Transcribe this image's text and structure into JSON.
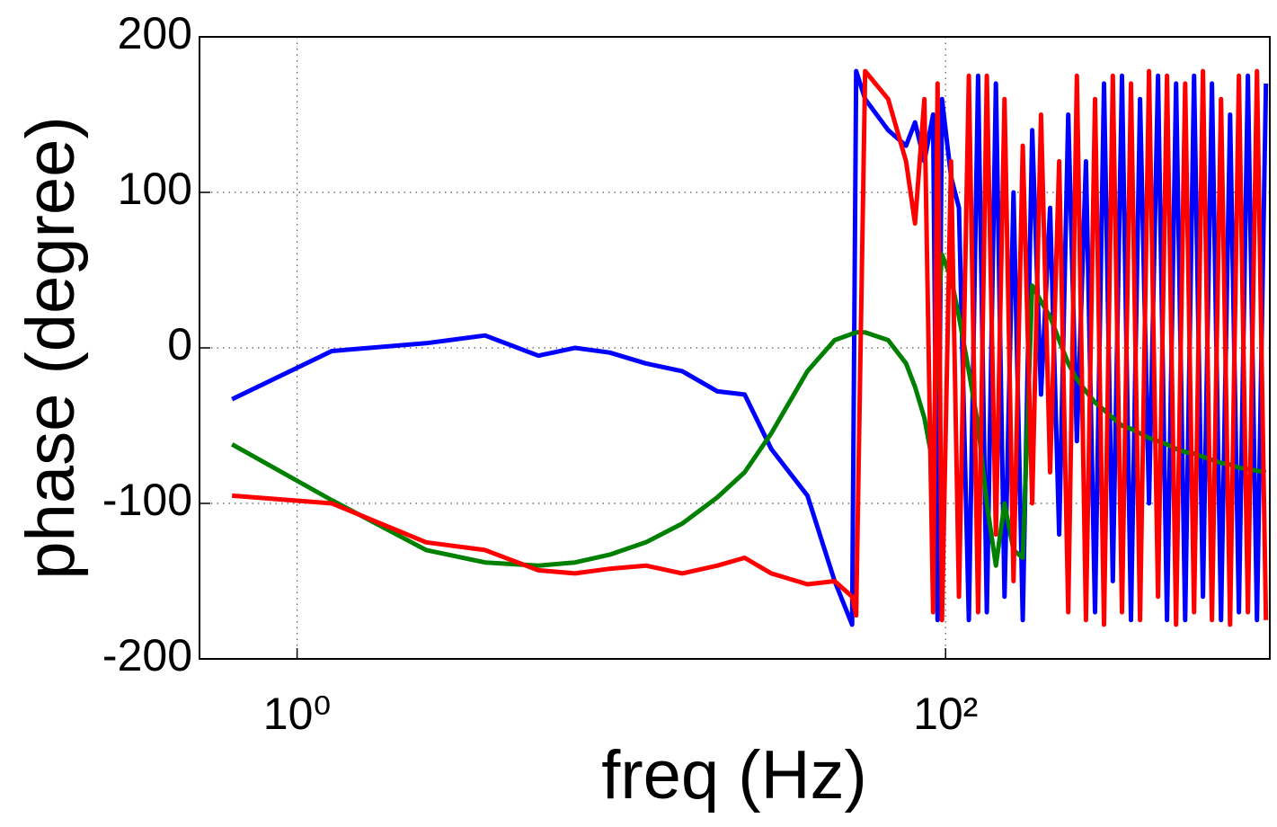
{
  "chart_data": {
    "type": "line",
    "xlabel": "freq (Hz)",
    "ylabel": "phase (degree)",
    "xscale": "log",
    "grid": true,
    "xlim": [
      0.5,
      1000
    ],
    "ylim": [
      -200,
      200
    ],
    "xticks": [
      {
        "value": 1,
        "label": "10⁰"
      },
      {
        "value": 100,
        "label": "10²"
      }
    ],
    "yticks": [
      -200,
      -100,
      0,
      100,
      200
    ],
    "x": [
      0.63,
      1.28,
      2.5,
      3.8,
      5.55,
      7.2,
      9.2,
      11.9,
      15.4,
      19.8,
      24,
      29,
      37.5,
      45.5,
      51.5,
      53,
      56.5,
      66.5,
      75.5,
      80.5,
      86,
      91.5,
      94.5,
      97.5,
      104,
      110,
      118,
      126,
      134,
      143,
      152,
      162,
      173,
      185,
      197,
      210,
      224,
      239,
      254,
      271,
      289,
      308,
      328,
      350,
      373,
      398,
      424,
      452,
      482,
      514,
      548,
      584,
      622,
      663,
      707,
      754,
      803,
      856,
      913,
      973
    ],
    "series": [
      {
        "color": "#0000ff",
        "values": [
          -33,
          -2,
          3,
          8,
          -5,
          0,
          -3,
          -10,
          -15,
          -28,
          -30,
          -65,
          -95,
          -150,
          -178,
          178,
          160,
          140,
          130,
          145,
          120,
          150,
          -175,
          160,
          110,
          90,
          -175,
          175,
          -170,
          170,
          -160,
          100,
          -175,
          140,
          -30,
          90,
          -120,
          150,
          -60,
          120,
          -170,
          170,
          -150,
          175,
          -175,
          160,
          -100,
          175,
          -175,
          170,
          -175,
          175,
          -160,
          170,
          -175,
          150,
          -170,
          175,
          -175,
          170
        ]
      },
      {
        "color": "#008000",
        "values": [
          -62,
          -98,
          -130,
          -138,
          -140,
          -138,
          -133,
          -125,
          -113,
          -96,
          -80,
          -55,
          -15,
          5,
          9,
          10,
          10,
          5,
          -10,
          -25,
          -45,
          -75,
          20,
          60,
          45,
          20,
          -15,
          -50,
          -100,
          -140,
          -100,
          -130,
          -135,
          40,
          30,
          20,
          5,
          -10,
          -20,
          -28,
          -35,
          -40,
          -45,
          -50,
          -52,
          -55,
          -58,
          -60,
          -62,
          -65,
          -67,
          -68,
          -70,
          -72,
          -74,
          -75,
          -77,
          -78,
          -79,
          -80
        ]
      },
      {
        "color": "#ff0000",
        "values": [
          -95,
          -100,
          -125,
          -130,
          -143,
          -145,
          -142,
          -140,
          -145,
          -140,
          -135,
          -145,
          -152,
          -150,
          -160,
          -172,
          178,
          160,
          120,
          80,
          160,
          -170,
          170,
          -175,
          120,
          -160,
          175,
          -170,
          175,
          -120,
          160,
          -150,
          130,
          -100,
          150,
          -80,
          120,
          -170,
          175,
          -175,
          160,
          -178,
          175,
          -170,
          170,
          -175,
          178,
          -160,
          175,
          -178,
          170,
          -170,
          178,
          -175,
          160,
          -178,
          175,
          -170,
          178,
          -175
        ]
      }
    ]
  }
}
